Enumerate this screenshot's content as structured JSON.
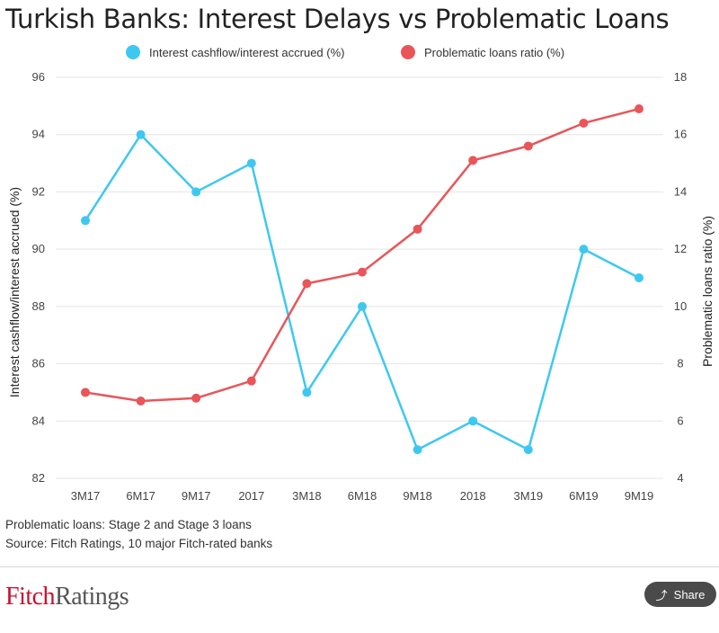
{
  "title": "Turkish Banks: Interest Delays vs Problematic Loans",
  "legend": [
    {
      "label": "Interest cashflow/interest accrued (%)",
      "color": "#3ec8f0"
    },
    {
      "label": "Problematic loans ratio (%)",
      "color": "#e8565a"
    }
  ],
  "chart_data": {
    "type": "line",
    "categories": [
      "3M17",
      "6M17",
      "9M17",
      "2017",
      "3M18",
      "6M18",
      "9M18",
      "2018",
      "3M19",
      "6M19",
      "9M19"
    ],
    "series": [
      {
        "name": "Interest cashflow/interest accrued (%)",
        "axis": "left",
        "color": "#3ec8f0",
        "values": [
          91,
          94,
          92,
          93,
          85,
          88,
          83,
          84,
          83,
          90,
          89
        ]
      },
      {
        "name": "Problematic loans ratio (%)",
        "axis": "right",
        "color": "#e8565a",
        "values": [
          7.0,
          6.7,
          6.8,
          7.4,
          10.8,
          11.2,
          12.7,
          15.1,
          15.6,
          16.4,
          16.9
        ]
      }
    ],
    "ylabel_left": "Interest cashflow/interest accrued (%)",
    "ylabel_right": "Problematic loans ratio (%)",
    "ylim_left": [
      82,
      96
    ],
    "yticks_left": [
      82,
      84,
      86,
      88,
      90,
      92,
      94,
      96
    ],
    "ylim_right": [
      4,
      18
    ],
    "yticks_right": [
      4,
      6,
      8,
      10,
      12,
      14,
      16,
      18
    ],
    "grid": true,
    "legend_position": "top"
  },
  "notes": {
    "line1": "Problematic loans: Stage 2 and Stage 3 loans",
    "line2": "Source: Fitch Ratings, 10 major Fitch-rated banks"
  },
  "logo": {
    "part1": "Fitch",
    "part2": "Ratings"
  },
  "share": {
    "label": "Share",
    "icon": "share-icon"
  }
}
